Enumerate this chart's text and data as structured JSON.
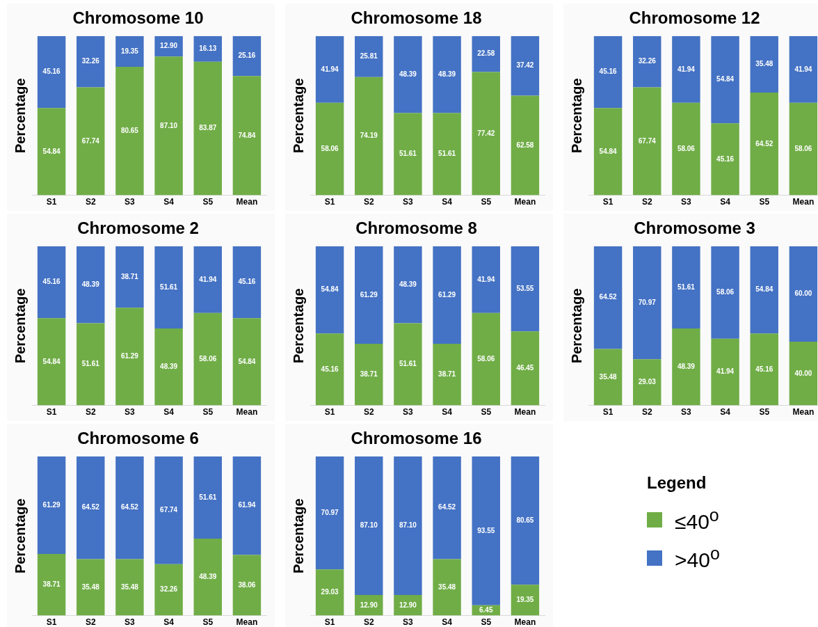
{
  "chart_data": [
    {
      "type": "bar",
      "title": "Chromosome 10",
      "ylabel": "Percentage",
      "categories": [
        "S1",
        "S2",
        "S3",
        "S4",
        "S5",
        "Mean"
      ],
      "stacked": true,
      "ylim": [
        0,
        100
      ],
      "tick_labels": "x",
      "grid": false,
      "legend": "bottom right",
      "legend_title": "Legend",
      "series": [
        {
          "name": "≤40$^{o}$",
          "color": "#70ad47",
          "values": [
            54.84,
            67.74,
            80.65,
            87.1,
            83.87,
            74.84
          ],
          "value_labels": [
            "54.84",
            "67.74",
            "80.65",
            "87.10",
            "83.87",
            "74.84"
          ]
        },
        {
          "name": ">40$^{o}$",
          "color": "#4472c4",
          "values": [
            45.16,
            32.26,
            19.35,
            12.9,
            16.13,
            25.16
          ],
          "value_labels": [
            "45.16",
            "32.26",
            "19.35",
            "12.90",
            "16.13",
            "25.16"
          ]
        }
      ]
    },
    {
      "type": "bar",
      "title": "Chromosome 18",
      "ylabel": "Percentage",
      "categories": [
        "S1",
        "S2",
        "S3",
        "S4",
        "S5",
        "Mean"
      ],
      "stacked": true,
      "ylim": [
        0,
        100
      ],
      "tick_labels": "x",
      "grid": false,
      "series": [
        {
          "color": "#70ad47",
          "values": [
            58.06,
            74.19,
            51.61,
            51.61,
            77.42,
            62.58
          ],
          "value_labels": [
            "58.06",
            "74.19",
            "51.61",
            "51.61",
            "77.42",
            "62.58"
          ]
        },
        {
          "color": "#4472c4",
          "values": [
            41.94,
            25.81,
            48.39,
            48.39,
            22.58,
            37.42
          ],
          "value_labels": [
            "41.94",
            "25.81",
            "48.39",
            "48.39",
            "22.58",
            "37.42"
          ]
        }
      ]
    },
    {
      "type": "bar",
      "title": "Chromosome 12",
      "ylabel": "Percentage",
      "categories": [
        "S1",
        "S2",
        "S3",
        "S4",
        "S5",
        "Mean"
      ],
      "stacked": true,
      "ylim": [
        0,
        100
      ],
      "tick_labels": "x",
      "grid": false,
      "series": [
        {
          "color": "#70ad47",
          "values": [
            54.84,
            67.74,
            58.06,
            45.16,
            64.52,
            58.06
          ],
          "value_labels": [
            "54.84",
            "67.74",
            "58.06",
            "45.16",
            "64.52",
            "58.06"
          ]
        },
        {
          "color": "#4472c4",
          "values": [
            45.16,
            32.26,
            41.94,
            54.84,
            35.48,
            41.94
          ],
          "value_labels": [
            "45.16",
            "32.26",
            "41.94",
            "54.84",
            "35.48",
            "41.94"
          ]
        }
      ]
    },
    {
      "type": "bar",
      "title": "Chromosome 2",
      "ylabel": "Percentage",
      "categories": [
        "S1",
        "S2",
        "S3",
        "S4",
        "S5",
        "Mean"
      ],
      "stacked": true,
      "ylim": [
        0,
        100
      ],
      "tick_labels": "x",
      "grid": false,
      "series": [
        {
          "color": "#70ad47",
          "values": [
            54.84,
            51.61,
            61.29,
            48.39,
            58.06,
            54.84
          ],
          "value_labels": [
            "54.84",
            "51.61",
            "61.29",
            "48.39",
            "58.06",
            "54.84"
          ]
        },
        {
          "color": "#4472c4",
          "values": [
            45.16,
            48.39,
            38.71,
            51.61,
            41.94,
            45.16
          ],
          "value_labels": [
            "45.16",
            "48.39",
            "38.71",
            "51.61",
            "41.94",
            "45.16"
          ]
        }
      ]
    },
    {
      "type": "bar",
      "title": "Chromosome 8",
      "ylabel": "Percentage",
      "categories": [
        "S1",
        "S2",
        "S3",
        "S4",
        "S5",
        "Mean"
      ],
      "stacked": true,
      "ylim": [
        0,
        100
      ],
      "tick_labels": "x",
      "grid": false,
      "series": [
        {
          "color": "#70ad47",
          "values": [
            45.16,
            38.71,
            51.61,
            38.71,
            58.06,
            46.45
          ],
          "value_labels": [
            "45.16",
            "38.71",
            "51.61",
            "38.71",
            "58.06",
            "46.45"
          ]
        },
        {
          "color": "#4472c4",
          "values": [
            54.84,
            61.29,
            48.39,
            61.29,
            41.94,
            53.55
          ],
          "value_labels": [
            "54.84",
            "61.29",
            "48.39",
            "61.29",
            "41.94",
            "53.55"
          ]
        }
      ]
    },
    {
      "type": "bar",
      "title": "Chromosome 3",
      "ylabel": "Percentage",
      "categories": [
        "S1",
        "S2",
        "S3",
        "S4",
        "S5",
        "Mean"
      ],
      "stacked": true,
      "ylim": [
        0,
        100
      ],
      "tick_labels": "x",
      "grid": false,
      "series": [
        {
          "color": "#70ad47",
          "values": [
            35.48,
            29.03,
            48.39,
            41.94,
            45.16,
            40.0
          ],
          "value_labels": [
            "35.48",
            "29.03",
            "48.39",
            "41.94",
            "45.16",
            "40.00"
          ]
        },
        {
          "color": "#4472c4",
          "values": [
            64.52,
            70.97,
            51.61,
            58.06,
            54.84,
            60.0
          ],
          "value_labels": [
            "64.52",
            "70.97",
            "51.61",
            "58.06",
            "54.84",
            "60.00"
          ]
        }
      ]
    },
    {
      "type": "bar",
      "title": "Chromosome 6",
      "ylabel": "Percentage",
      "categories": [
        "S1",
        "S2",
        "S3",
        "S4",
        "S5",
        "Mean"
      ],
      "stacked": true,
      "ylim": [
        0,
        100
      ],
      "tick_labels": "x",
      "grid": false,
      "series": [
        {
          "color": "#70ad47",
          "values": [
            38.71,
            35.48,
            35.48,
            32.26,
            48.39,
            38.06
          ],
          "value_labels": [
            "38.71",
            "35.48",
            "35.48",
            "32.26",
            "48.39",
            "38.06"
          ]
        },
        {
          "color": "#4472c4",
          "values": [
            61.29,
            64.52,
            64.52,
            67.74,
            51.61,
            61.94
          ],
          "value_labels": [
            "61.29",
            "64.52",
            "64.52",
            "67.74",
            "51.61",
            "61.94"
          ]
        }
      ]
    },
    {
      "type": "bar",
      "title": "Chromosome 16",
      "ylabel": "Percentage",
      "categories": [
        "S1",
        "S2",
        "S3",
        "S4",
        "S5",
        "Mean"
      ],
      "stacked": true,
      "ylim": [
        0,
        100
      ],
      "tick_labels": "x",
      "grid": false,
      "series": [
        {
          "color": "#70ad47",
          "values": [
            29.03,
            12.9,
            12.9,
            35.48,
            6.45,
            19.35
          ],
          "value_labels": [
            "29.03",
            "12.90",
            "12.90",
            "35.48",
            "6.45",
            "19.35"
          ]
        },
        {
          "color": "#4472c4",
          "values": [
            70.97,
            87.1,
            87.1,
            64.52,
            93.55,
            80.65
          ],
          "value_labels": [
            "70.97",
            "87.10",
            "87.10",
            "64.52",
            "93.55",
            "80.65"
          ]
        }
      ]
    }
  ]
}
